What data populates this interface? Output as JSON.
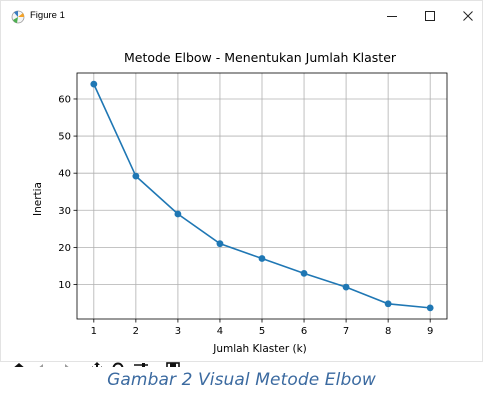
{
  "window": {
    "title": "Figure 1",
    "app_icon": "matplotlib-icon",
    "controls": [
      {
        "name": "minimize-button",
        "icon": "minimize-icon"
      },
      {
        "name": "maximize-button",
        "icon": "maximize-icon"
      },
      {
        "name": "close-button",
        "icon": "close-icon"
      }
    ]
  },
  "chart_data": {
    "type": "line",
    "title": "Metode Elbow - Menentukan Jumlah Klaster",
    "xlabel": "Jumlah Klaster (k)",
    "ylabel": "Inertia",
    "x": [
      1,
      2,
      3,
      4,
      5,
      6,
      7,
      8,
      9
    ],
    "values": [
      64,
      39.2,
      29,
      21,
      17,
      13,
      9.3,
      4.8,
      3.7
    ],
    "xticks": [
      "1",
      "2",
      "3",
      "4",
      "5",
      "6",
      "7",
      "8",
      "9"
    ],
    "yticks": [
      "10",
      "20",
      "30",
      "40",
      "50",
      "60"
    ],
    "xlim": [
      0.6,
      9.4
    ],
    "ylim": [
      0.7,
      67
    ],
    "grid": true,
    "marker": "circle",
    "color": "#1f77b4"
  },
  "toolbar": {
    "items": [
      {
        "name": "home-button",
        "icon": "home-icon"
      },
      {
        "name": "back-button",
        "icon": "back-arrow-icon"
      },
      {
        "name": "forward-button",
        "icon": "forward-arrow-icon"
      },
      {
        "name": "pan-button",
        "icon": "pan-icon"
      },
      {
        "name": "zoom-button",
        "icon": "zoom-icon"
      },
      {
        "name": "configure-button",
        "icon": "sliders-icon"
      },
      {
        "name": "save-button",
        "icon": "save-icon"
      }
    ]
  },
  "caption": "Gambar 2 Visual Metode Elbow"
}
